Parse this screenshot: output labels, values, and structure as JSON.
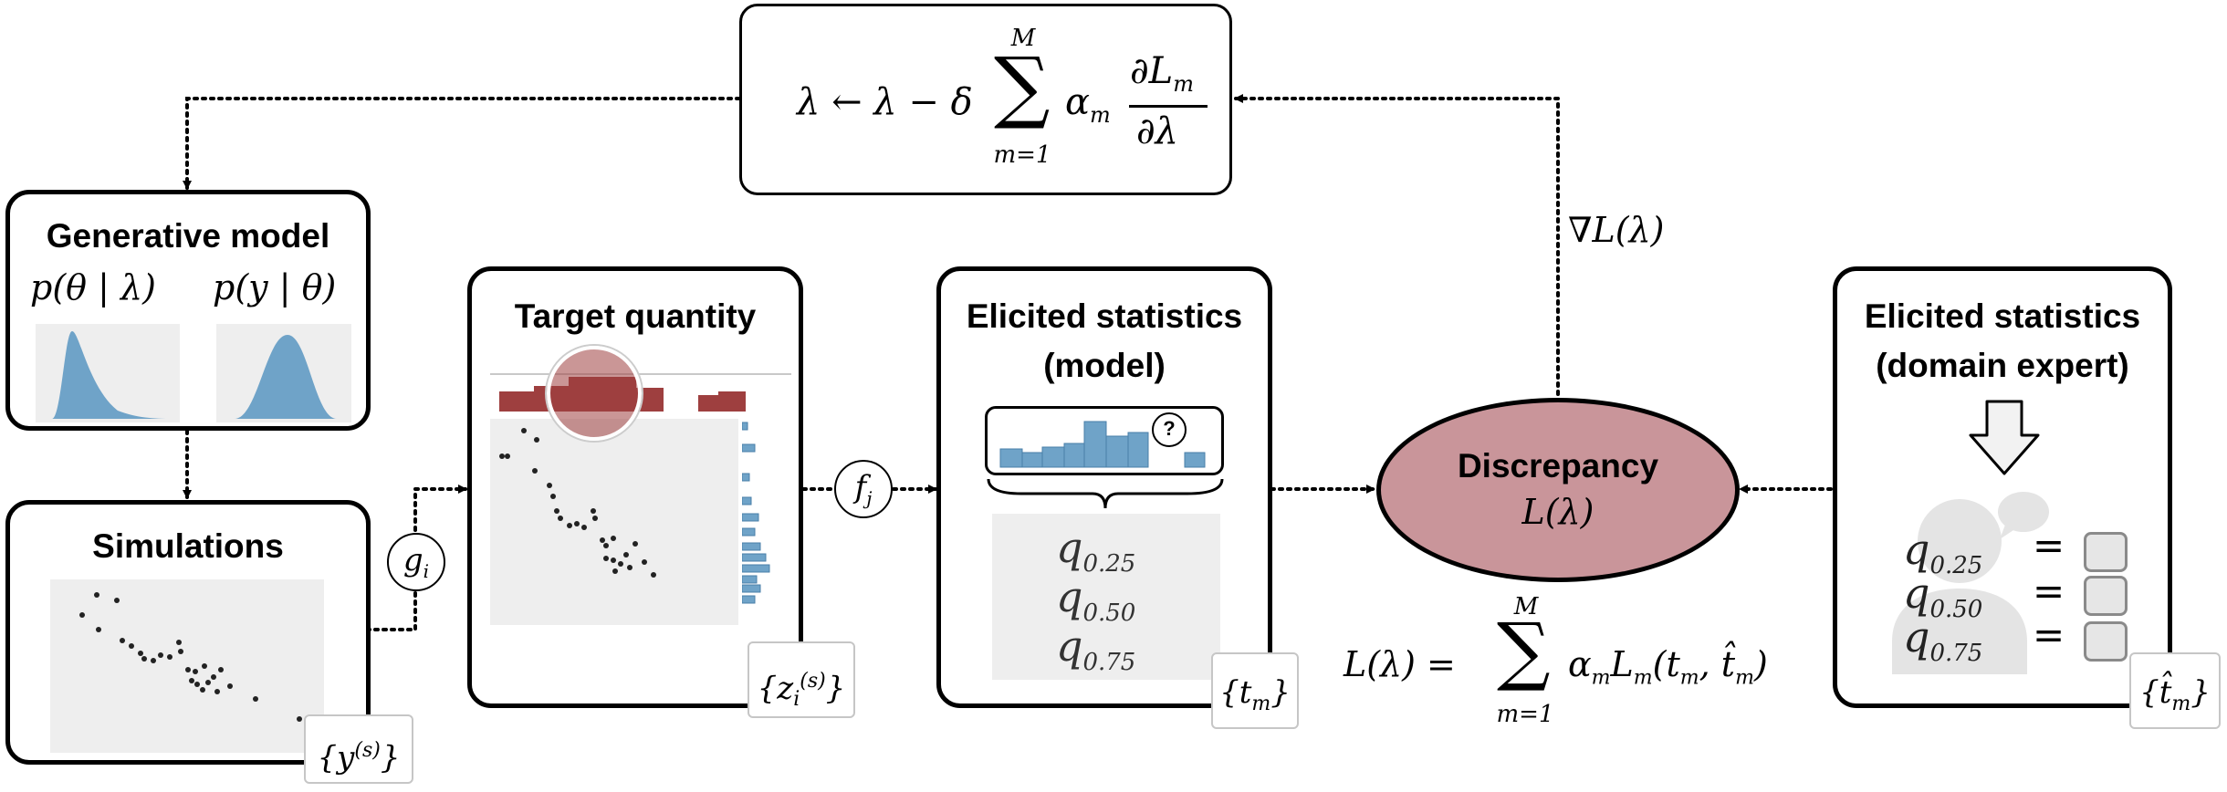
{
  "update_rule": {
    "lhs": "λ ← λ − δ",
    "sum_top": "M",
    "sum_bottom": "m=1",
    "alpha": "α",
    "alpha_sub": "m",
    "numerator": "∂L",
    "numerator_sub": "m",
    "denominator": "∂λ"
  },
  "generative_model": {
    "title": "Generative model",
    "prior": "p(θ | λ)",
    "likelihood": "p(y | θ)"
  },
  "simulations": {
    "title": "Simulations",
    "tag": "{y",
    "tag_sup": "(s)",
    "tag_close": "}"
  },
  "g_function": {
    "label": "g",
    "sub": "i"
  },
  "f_function": {
    "label": "f",
    "sub": "j"
  },
  "target_quantity": {
    "title": "Target quantity",
    "tag": "{z",
    "tag_sub": "i",
    "tag_sup": "(s)",
    "tag_close": "}"
  },
  "elicited_model": {
    "title_line1": "Elicited statistics",
    "title_line2": "(model)",
    "question_mark": "?",
    "quantiles": [
      {
        "q": "q",
        "sub": "0.25"
      },
      {
        "q": "q",
        "sub": "0.50"
      },
      {
        "q": "q",
        "sub": "0.75"
      }
    ],
    "tag": "{t",
    "tag_sub": "m",
    "tag_close": "}"
  },
  "gradient_label": "∇L(λ)",
  "discrepancy": {
    "title": "Discrepancy",
    "formula": "L(λ)"
  },
  "loss_formula": {
    "lhs": "L(λ) =",
    "sum_top": "M",
    "sum_bottom": "m=1",
    "rhs": "α",
    "rhs_sub": "m",
    "rhs2": "L",
    "rhs2_sub": "m",
    "rhs3": "(t",
    "rhs3_sub": "m",
    "rhs4": ", t̂",
    "rhs4_sub": "m",
    "rhs5": ")"
  },
  "elicited_expert": {
    "title_line1": "Elicited statistics",
    "title_line2": "(domain expert)",
    "quantiles": [
      {
        "q": "q",
        "sub": "0.25",
        "eq": "="
      },
      {
        "q": "q",
        "sub": "0.50",
        "eq": "="
      },
      {
        "q": "q",
        "sub": "0.75",
        "eq": "="
      }
    ],
    "tag": "{t̂",
    "tag_sub": "m",
    "tag_close": "}"
  },
  "colors": {
    "density_blue": "#6fa3c8",
    "histogram_red": "#9e3f3f",
    "discrepancy_fill": "#c9959a",
    "panel_gray": "#eeeeee"
  }
}
